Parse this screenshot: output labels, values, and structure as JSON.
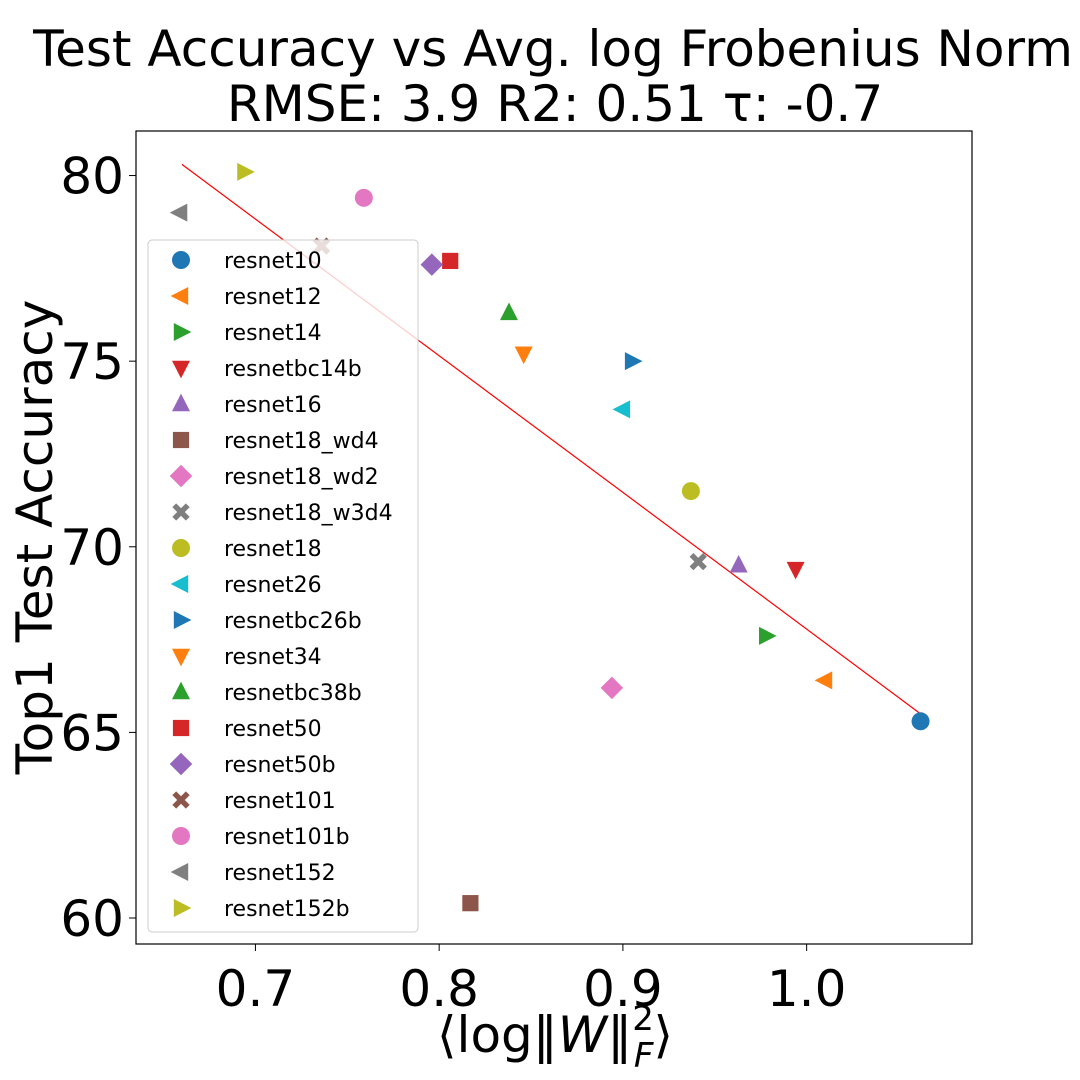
{
  "chart_data": {
    "type": "scatter",
    "title_line1": "Test Accuracy vs Avg. log Frobenius Norm",
    "title_line2": "RMSE: 3.9 R2: 0.51 τ: -0.7",
    "xlabel": "⟨log‖W‖²_F⟩",
    "ylabel": "Top1 Test Accuracy",
    "xlim": [
      0.635,
      1.09
    ],
    "ylim": [
      59.3,
      81.2
    ],
    "xticks": [
      0.7,
      0.8,
      0.9,
      1.0
    ],
    "xtick_labels": [
      "0.7",
      "0.8",
      "0.9",
      "1.0"
    ],
    "yticks": [
      60,
      65,
      70,
      75,
      80
    ],
    "ytick_labels": [
      "60",
      "65",
      "70",
      "75",
      "80"
    ],
    "grid": false,
    "legend_position": "left",
    "fit_line": {
      "color": "#ff0000",
      "x": [
        0.66,
        1.062
      ],
      "y": [
        80.3,
        65.5
      ]
    },
    "series": [
      {
        "name": "resnet10",
        "marker": "circle",
        "color": "#1f77b4",
        "x": 1.062,
        "y": 65.3
      },
      {
        "name": "resnet12",
        "marker": "triangle-left",
        "color": "#ff7f0e",
        "x": 1.01,
        "y": 66.4
      },
      {
        "name": "resnet14",
        "marker": "triangle-right",
        "color": "#2ca02c",
        "x": 0.978,
        "y": 67.6
      },
      {
        "name": "resnetbc14b",
        "marker": "triangle-down",
        "color": "#d62728",
        "x": 0.994,
        "y": 69.4
      },
      {
        "name": "resnet16",
        "marker": "triangle-up",
        "color": "#9467bd",
        "x": 0.963,
        "y": 69.5
      },
      {
        "name": "resnet18_wd4",
        "marker": "square",
        "color": "#8c564b",
        "x": 0.817,
        "y": 60.4
      },
      {
        "name": "resnet18_wd2",
        "marker": "diamond",
        "color": "#e377c2",
        "x": 0.894,
        "y": 66.2
      },
      {
        "name": "resnet18_w3d4",
        "marker": "x",
        "color": "#7f7f7f",
        "x": 0.941,
        "y": 69.6
      },
      {
        "name": "resnet18",
        "marker": "circle",
        "color": "#bcbd22",
        "x": 0.937,
        "y": 71.5
      },
      {
        "name": "resnet26",
        "marker": "triangle-left",
        "color": "#17becf",
        "x": 0.9,
        "y": 73.7
      },
      {
        "name": "resnetbc26b",
        "marker": "triangle-right",
        "color": "#1f77b4",
        "x": 0.905,
        "y": 75.0
      },
      {
        "name": "resnet34",
        "marker": "triangle-down",
        "color": "#ff7f0e",
        "x": 0.846,
        "y": 75.2
      },
      {
        "name": "resnetbc38b",
        "marker": "triangle-up",
        "color": "#2ca02c",
        "x": 0.838,
        "y": 76.3
      },
      {
        "name": "resnet50",
        "marker": "square",
        "color": "#d62728",
        "x": 0.806,
        "y": 77.7
      },
      {
        "name": "resnet50b",
        "marker": "diamond",
        "color": "#9467bd",
        "x": 0.796,
        "y": 77.6
      },
      {
        "name": "resnet101",
        "marker": "x",
        "color": "#8c564b",
        "x": 0.736,
        "y": 78.1
      },
      {
        "name": "resnet101b",
        "marker": "circle",
        "color": "#e377c2",
        "x": 0.759,
        "y": 79.4
      },
      {
        "name": "resnet152",
        "marker": "triangle-left",
        "color": "#7f7f7f",
        "x": 0.659,
        "y": 79.0
      },
      {
        "name": "resnet152b",
        "marker": "triangle-right",
        "color": "#bcbd22",
        "x": 0.694,
        "y": 80.1
      }
    ]
  }
}
